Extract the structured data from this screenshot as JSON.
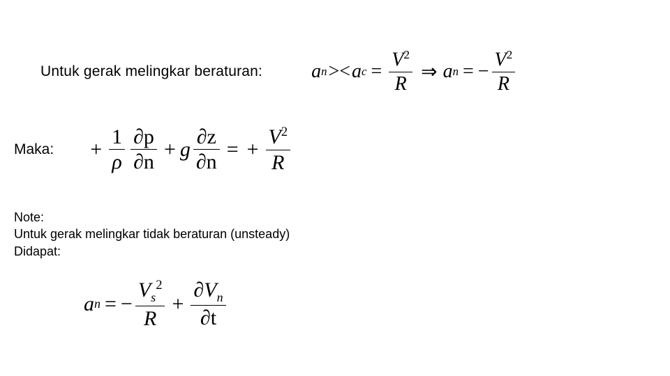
{
  "colors": {
    "background": "#ffffff",
    "text": "#000000",
    "bar": "#000000"
  },
  "fonts": {
    "body_family": "Arial, Helvetica, sans-serif",
    "math_family": "Times New Roman, Times, serif",
    "label_size_pt": 16,
    "note_size_pt": 14,
    "math_size_pt": 22
  },
  "labels": {
    "line1": "Untuk gerak melingkar beraturan:",
    "maka": "Maka:",
    "note": "Note:",
    "note_line2": "Untuk gerak melingkar tidak beraturan (unsteady)",
    "didapat": "Didapat:"
  },
  "eq1": {
    "a": "a",
    "n": "n",
    "gtlt": ">< ",
    "c": "c",
    "eq": " = ",
    "V": "V",
    "sq": "2",
    "R": "R",
    "imp": " ⇒ ",
    "eq2": " = ",
    "minus": "−"
  },
  "eq2": {
    "plus": "+",
    "one": "1",
    "rho": "ρ",
    "dp": "∂p",
    "dn": "∂n",
    "g": "g",
    "dz": "∂z",
    "eq": " = ",
    "V": "V",
    "sq": "2",
    "R": "R"
  },
  "eq3": {
    "a": "a",
    "n": "n",
    "eq": " = ",
    "minus": "−",
    "V": "V",
    "s": "s",
    "sq": "2",
    "R": "R",
    "plus": "+",
    "dVn_top_d": "∂",
    "dVn_top_V": "V",
    "dVn_top_n": "n",
    "dt": "∂t"
  }
}
